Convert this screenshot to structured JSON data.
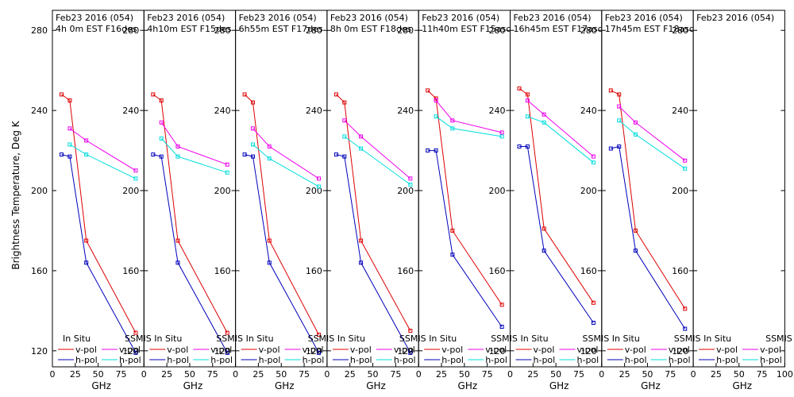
{
  "ylabel": "Brightness Temperature, Deg K",
  "xlabel": "GHz",
  "legend": {
    "insitu_label": "In Situ",
    "ssmis_label": "SSMIS",
    "vpol_label": "v-pol",
    "hpol_label": "h-pol"
  },
  "colors": {
    "insitu_v": "#dd0000",
    "insitu_h": "#0000bb",
    "ssmis_v": "#ee00ee",
    "ssmis_h": "#00dddd"
  },
  "chart_data": [
    {
      "type": "line",
      "title_line1": "Feb23 2016 (054)",
      "title_line2": "4h 0m  EST F16des",
      "xlim": [
        0,
        100
      ],
      "ylim": [
        112,
        290
      ],
      "xticks": [
        0,
        25,
        50,
        75
      ],
      "yticks_left": [
        120,
        160,
        200,
        240,
        280
      ],
      "yticks_right": [
        120,
        160,
        200,
        240,
        280
      ],
      "series": [
        {
          "name": "In Situ v-pol",
          "x": [
            10,
            19,
            37,
            91
          ],
          "y": [
            248,
            245,
            175,
            129
          ]
        },
        {
          "name": "In Situ h-pol",
          "x": [
            10,
            19,
            37,
            91
          ],
          "y": [
            218,
            217,
            164,
            119
          ]
        },
        {
          "name": "SSMIS v-pol",
          "x": [
            19,
            37,
            91
          ],
          "y": [
            231,
            225,
            210
          ]
        },
        {
          "name": "SSMIS h-pol",
          "x": [
            19,
            37,
            91
          ],
          "y": [
            223,
            218,
            206
          ]
        }
      ]
    },
    {
      "type": "line",
      "title_line1": "Feb23 2016 (054)",
      "title_line2": "4h10m  EST F15des",
      "xlim": [
        0,
        100
      ],
      "ylim": [
        112,
        290
      ],
      "xticks": [
        0,
        25,
        50,
        75
      ],
      "yticks_left": [
        120,
        160,
        200,
        240,
        280
      ],
      "yticks_right": [
        120,
        160,
        200,
        240,
        280
      ],
      "series": [
        {
          "name": "In Situ v-pol",
          "x": [
            10,
            19,
            37,
            91
          ],
          "y": [
            248,
            245,
            175,
            129
          ]
        },
        {
          "name": "In Situ h-pol",
          "x": [
            10,
            19,
            37,
            91
          ],
          "y": [
            218,
            217,
            164,
            119
          ]
        },
        {
          "name": "SSMIS v-pol",
          "x": [
            19,
            37,
            91
          ],
          "y": [
            234,
            222,
            213
          ]
        },
        {
          "name": "SSMIS h-pol",
          "x": [
            19,
            37,
            91
          ],
          "y": [
            226,
            217,
            209
          ]
        }
      ]
    },
    {
      "type": "line",
      "title_line1": "Feb23 2016 (054)",
      "title_line2": "6h55m  EST F17des",
      "xlim": [
        0,
        100
      ],
      "ylim": [
        112,
        290
      ],
      "xticks": [
        0,
        25,
        50,
        75
      ],
      "yticks_left": [
        120,
        160,
        200,
        240,
        280
      ],
      "yticks_right": [
        120,
        160,
        200,
        240,
        280
      ],
      "series": [
        {
          "name": "In Situ v-pol",
          "x": [
            10,
            19,
            37,
            91
          ],
          "y": [
            248,
            244,
            175,
            128
          ]
        },
        {
          "name": "In Situ h-pol",
          "x": [
            10,
            19,
            37,
            91
          ],
          "y": [
            218,
            217,
            164,
            119
          ]
        },
        {
          "name": "SSMIS v-pol",
          "x": [
            19,
            37,
            91
          ],
          "y": [
            231,
            222,
            206
          ]
        },
        {
          "name": "SSMIS h-pol",
          "x": [
            19,
            37,
            91
          ],
          "y": [
            223,
            216,
            202
          ]
        }
      ]
    },
    {
      "type": "line",
      "title_line1": "Feb23 2016 (054)",
      "title_line2": "8h 0m  EST F18des",
      "xlim": [
        0,
        100
      ],
      "ylim": [
        112,
        290
      ],
      "xticks": [
        0,
        25,
        50,
        75
      ],
      "yticks_left": [
        120,
        160,
        200,
        240,
        280
      ],
      "yticks_right": [
        120,
        160,
        200,
        240,
        280
      ],
      "series": [
        {
          "name": "In Situ v-pol",
          "x": [
            10,
            19,
            37,
            91
          ],
          "y": [
            248,
            244,
            175,
            130
          ]
        },
        {
          "name": "In Situ h-pol",
          "x": [
            10,
            19,
            37,
            91
          ],
          "y": [
            218,
            217,
            164,
            119
          ]
        },
        {
          "name": "SSMIS v-pol",
          "x": [
            19,
            37,
            91
          ],
          "y": [
            235,
            227,
            206
          ]
        },
        {
          "name": "SSMIS h-pol",
          "x": [
            19,
            37,
            91
          ],
          "y": [
            227,
            221,
            203
          ]
        }
      ]
    },
    {
      "type": "line",
      "title_line1": "Feb23 2016 (054)",
      "title_line2": "11h40m  EST F15asc",
      "xlim": [
        0,
        100
      ],
      "ylim": [
        112,
        290
      ],
      "xticks": [
        0,
        25,
        50,
        75
      ],
      "yticks_left": [
        120,
        160,
        200,
        240,
        280
      ],
      "yticks_right": [
        120,
        160,
        200,
        240,
        280
      ],
      "series": [
        {
          "name": "In Situ v-pol",
          "x": [
            10,
            19,
            37,
            91
          ],
          "y": [
            250,
            246,
            180,
            143
          ]
        },
        {
          "name": "In Situ h-pol",
          "x": [
            10,
            19,
            37,
            91
          ],
          "y": [
            220,
            220,
            168,
            132
          ]
        },
        {
          "name": "SSMIS v-pol",
          "x": [
            19,
            37,
            91
          ],
          "y": [
            245,
            235,
            229
          ]
        },
        {
          "name": "SSMIS h-pol",
          "x": [
            19,
            37,
            91
          ],
          "y": [
            237,
            231,
            227
          ]
        }
      ]
    },
    {
      "type": "line",
      "title_line1": "Feb23 2016 (054)",
      "title_line2": "16h45m  EST F17asc",
      "xlim": [
        0,
        100
      ],
      "ylim": [
        112,
        290
      ],
      "xticks": [
        0,
        25,
        50,
        75
      ],
      "yticks_left": [
        120,
        160,
        200,
        240,
        280
      ],
      "yticks_right": [
        120,
        160,
        200,
        240,
        280
      ],
      "series": [
        {
          "name": "In Situ v-pol",
          "x": [
            10,
            19,
            37,
            91
          ],
          "y": [
            251,
            248,
            181,
            144
          ]
        },
        {
          "name": "In Situ h-pol",
          "x": [
            10,
            19,
            37,
            91
          ],
          "y": [
            222,
            222,
            170,
            134
          ]
        },
        {
          "name": "SSMIS v-pol",
          "x": [
            19,
            37,
            91
          ],
          "y": [
            245,
            238,
            217
          ]
        },
        {
          "name": "SSMIS h-pol",
          "x": [
            19,
            37,
            91
          ],
          "y": [
            237,
            234,
            214
          ]
        }
      ]
    },
    {
      "type": "line",
      "title_line1": "Feb23 2016 (054)",
      "title_line2": "17h45m  EST F18asc",
      "xlim": [
        0,
        100
      ],
      "ylim": [
        112,
        290
      ],
      "xticks": [
        0,
        25,
        50,
        75
      ],
      "yticks_left": [
        120,
        160,
        200,
        240,
        280
      ],
      "yticks_right": [
        120,
        160,
        200,
        240,
        280
      ],
      "series": [
        {
          "name": "In Situ v-pol",
          "x": [
            10,
            19,
            37,
            91
          ],
          "y": [
            250,
            248,
            180,
            141
          ]
        },
        {
          "name": "In Situ h-pol",
          "x": [
            10,
            19,
            37,
            91
          ],
          "y": [
            221,
            222,
            170,
            131
          ]
        },
        {
          "name": "SSMIS v-pol",
          "x": [
            19,
            37,
            91
          ],
          "y": [
            242,
            234,
            215
          ]
        },
        {
          "name": "SSMIS h-pol",
          "x": [
            19,
            37,
            91
          ],
          "y": [
            235,
            228,
            211
          ]
        }
      ]
    },
    {
      "type": "line",
      "title_line1": "Feb23 2016 (054)",
      "title_line2": "",
      "xlim": [
        0,
        100
      ],
      "ylim": [
        112,
        290
      ],
      "xticks": [
        0,
        25,
        50,
        75,
        100
      ],
      "yticks_left": [
        120,
        160,
        200,
        240,
        280
      ],
      "yticks_right": [],
      "series": []
    }
  ]
}
